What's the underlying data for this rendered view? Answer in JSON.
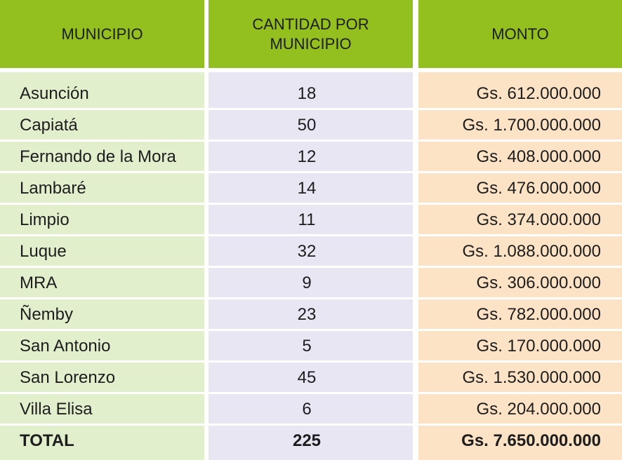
{
  "colors": {
    "header_bg": "#93c01f",
    "col1_bg": "#e2efcd",
    "col2_bg": "#e8e6f3",
    "col3_bg": "#fde3c6"
  },
  "header": {
    "municipio": "MUNICIPIO",
    "cantidad_line1": "CANTIDAD POR",
    "cantidad_line2": "MUNICIPIO",
    "monto": "MONTO"
  },
  "rows": [
    {
      "municipio": "Asunción",
      "cantidad": "18",
      "monto": "Gs. 612.000.000"
    },
    {
      "municipio": "Capiatá",
      "cantidad": "50",
      "monto": "Gs. 1.700.000.000"
    },
    {
      "municipio": "Fernando de la Mora",
      "cantidad": "12",
      "monto": "Gs. 408.000.000"
    },
    {
      "municipio": "Lambaré",
      "cantidad": "14",
      "monto": "Gs. 476.000.000"
    },
    {
      "municipio": "Limpio",
      "cantidad": "11",
      "monto": "Gs. 374.000.000"
    },
    {
      "municipio": "Luque",
      "cantidad": "32",
      "monto": "Gs. 1.088.000.000"
    },
    {
      "municipio": "MRA",
      "cantidad": "9",
      "monto": "Gs. 306.000.000"
    },
    {
      "municipio": "Ñemby",
      "cantidad": "23",
      "monto": "Gs. 782.000.000"
    },
    {
      "municipio": "San Antonio",
      "cantidad": "5",
      "monto": "Gs. 170.000.000"
    },
    {
      "municipio": "San Lorenzo",
      "cantidad": "45",
      "monto": "Gs. 1.530.000.000"
    },
    {
      "municipio": "Villa Elisa",
      "cantidad": "6",
      "monto": "Gs. 204.000.000"
    }
  ],
  "total": {
    "label": "TOTAL",
    "cantidad": "225",
    "monto": "Gs. 7.650.000.000"
  }
}
